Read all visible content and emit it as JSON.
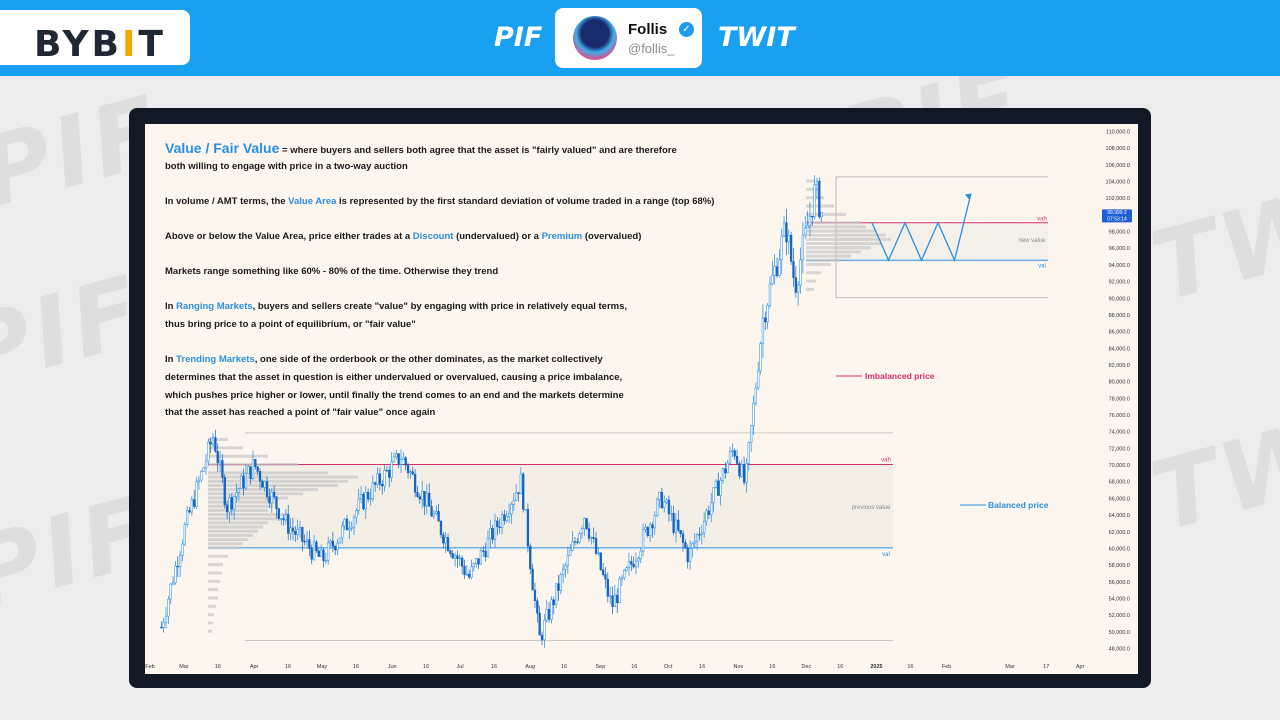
{
  "header": {
    "logo": "BYBIT",
    "left_tag": "PIF",
    "right_tag": "TWIT",
    "profile_name": "Follis",
    "profile_handle": "@follis_",
    "verified_icon": "checkmark-badge-icon"
  },
  "watermark": [
    "PIF",
    "TWIT"
  ],
  "text_block": {
    "title": "Value / Fair Value",
    "line1_rest": " = where buyers and sellers both agree that the asset is \"fairly valued\" and are therefore",
    "line2": "both willing to engage with price in a two-way auction",
    "line3_a": "In volume / AMT terms, the ",
    "line3_hl": "Value Area",
    "line3_b": " is represented by the first standard deviation of volume traded in a range (top 68%)",
    "line4_a": "Above or below the Value Area, price either trades at a ",
    "line4_hl1": "Discount",
    "line4_b": " (undervalued) or a ",
    "line4_hl2": "Premium",
    "line4_c": " (overvalued)",
    "line5": "Markets range something like 60% - 80% of the time. Otherwise they trend",
    "line6_a": "In ",
    "line6_hl": "Ranging Markets",
    "line6_b": ", buyers and sellers create \"value\" by engaging with price in relatively equal terms,",
    "line7": "thus bring price to a point of equilibrium, or \"fair value\"",
    "line8_a": "In ",
    "line8_hl": "Trending Markets",
    "line8_b": ", one side of the orderbook or the other dominates, as the market collectively",
    "line9": "determines that the asset in question is either undervalued or overvalued, causing a price imbalance,",
    "line10": "which pushes price higher or lower, until finally the trend comes to an end and the markets determine",
    "line11": "that the asset has reached a point of \"fair value\" once again"
  },
  "annotations": {
    "imbalanced": "Imbalanced price",
    "balanced": "Balanced price",
    "vah_upper": "vah",
    "val_upper": "val",
    "new_value": "new value",
    "vah_lower": "vah",
    "val_lower": "val",
    "previous_value": "previous value",
    "price_tag": "99,999.2",
    "time_tag": "07:53:14"
  },
  "colors": {
    "accent_blue": "#2a8fe0",
    "vah_pink": "#d4306b",
    "candle_blue": "#1e88e5",
    "background": "#fdf6ef"
  },
  "chart_data": {
    "type": "candlestick",
    "title": "",
    "y_axis": {
      "min": 48000,
      "max": 110000,
      "ticks": [
        110000,
        108000,
        106000,
        104000,
        102000,
        100000,
        98000,
        96000,
        94000,
        92000,
        90000,
        88000,
        86000,
        84000,
        82000,
        80000,
        78000,
        76000,
        74000,
        72000,
        70000,
        68000,
        66000,
        64000,
        62000,
        60000,
        58000,
        56000,
        54000,
        52000,
        50000,
        48000
      ],
      "tick_labels": [
        "110,000.0",
        "108,000.0",
        "106,000.0",
        "104,000.0",
        "102,000.0",
        "100,000.0",
        "98,000.0",
        "96,000.0",
        "94,000.0",
        "92,000.0",
        "90,000.0",
        "88,000.0",
        "86,000.0",
        "84,000.0",
        "82,000.0",
        "80,000.0",
        "78,000.0",
        "76,000.0",
        "74,000.0",
        "72,000.0",
        "70,000.0",
        "68,000.0",
        "66,000.0",
        "64,000.0",
        "62,000.0",
        "60,000.0",
        "58,000.0",
        "56,000.0",
        "54,000.0",
        "52,000.0",
        "50,000.0",
        "48,000.0"
      ]
    },
    "x_axis": {
      "labels": [
        "Feb",
        "Mar",
        "16",
        "Apr",
        "16",
        "May",
        "16",
        "Jun",
        "16",
        "Jul",
        "16",
        "Aug",
        "16",
        "Sep",
        "16",
        "Oct",
        "16",
        "Nov",
        "16",
        "Dec",
        "16",
        "2025",
        "16",
        "Feb",
        "Mar",
        "17",
        "Apr"
      ]
    },
    "lower_range": {
      "vah": 70000,
      "val": 60000,
      "high": 73800,
      "low": 49000
    },
    "upper_range": {
      "vah": 99000,
      "val": 94500,
      "high": 104500,
      "low": 90000
    },
    "current_price": 99999.2,
    "price_path": [
      {
        "date": "Feb 20",
        "price": 50500
      },
      {
        "date": "Mar 1",
        "price": 62000
      },
      {
        "date": "Mar 10",
        "price": 70000
      },
      {
        "date": "Mar 14",
        "price": 73500
      },
      {
        "date": "Mar 20",
        "price": 65000
      },
      {
        "date": "Apr 1",
        "price": 70000
      },
      {
        "date": "Apr 15",
        "price": 63000
      },
      {
        "date": "May 1",
        "price": 58500
      },
      {
        "date": "May 20",
        "price": 66000
      },
      {
        "date": "Jun 5",
        "price": 71000
      },
      {
        "date": "Jun 25",
        "price": 61000
      },
      {
        "date": "Jul 5",
        "price": 56500
      },
      {
        "date": "Jul 28",
        "price": 68000
      },
      {
        "date": "Aug 5",
        "price": 49000
      },
      {
        "date": "Aug 25",
        "price": 64000
      },
      {
        "date": "Sep 6",
        "price": 53000
      },
      {
        "date": "Sep 28",
        "price": 66000
      },
      {
        "date": "Oct 10",
        "price": 59000
      },
      {
        "date": "Oct 30",
        "price": 72000
      },
      {
        "date": "Nov 4",
        "price": 67500
      },
      {
        "date": "Nov 12",
        "price": 88000
      },
      {
        "date": "Nov 22",
        "price": 98500
      },
      {
        "date": "Nov 26",
        "price": 91500
      },
      {
        "date": "Dec 5",
        "price": 103000
      },
      {
        "date": "Dec 8",
        "price": 99999
      }
    ],
    "projection_zigzag": [
      99000,
      94500,
      99000,
      94500,
      99000,
      94500,
      102500
    ]
  }
}
